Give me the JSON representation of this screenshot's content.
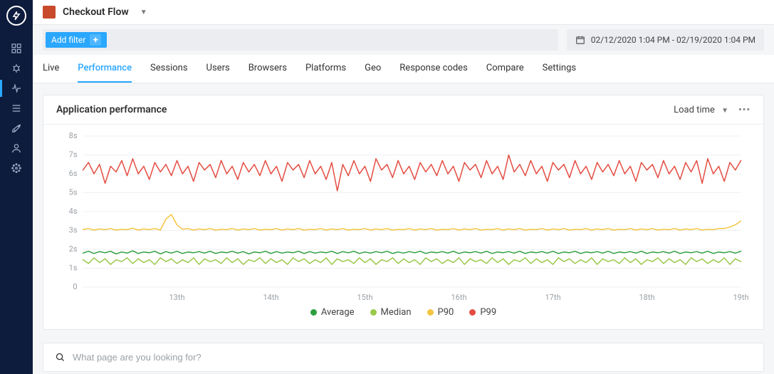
{
  "app": {
    "name": "Checkout Flow"
  },
  "filter": {
    "add_label": "Add filter"
  },
  "daterange": {
    "text": "02/12/2020 1:04 PM - 02/19/2020 1:04 PM"
  },
  "tabs": [
    {
      "label": "Live",
      "active": false
    },
    {
      "label": "Performance",
      "active": true
    },
    {
      "label": "Sessions",
      "active": false
    },
    {
      "label": "Users",
      "active": false
    },
    {
      "label": "Browsers",
      "active": false
    },
    {
      "label": "Platforms",
      "active": false
    },
    {
      "label": "Geo",
      "active": false
    },
    {
      "label": "Response codes",
      "active": false
    },
    {
      "label": "Compare",
      "active": false
    },
    {
      "label": "Settings",
      "active": false
    }
  ],
  "chart": {
    "title": "Application performance",
    "metric_label": "Load time",
    "type": "line",
    "ylim": [
      0,
      8
    ],
    "ytick_step": 1,
    "ylabel_suffix": "s",
    "background_color": "#ffffff",
    "grid_color": "#eef0f2",
    "axis_text_color": "#9aa0a6",
    "axis_font_size": 11,
    "x_labels": [
      "13th",
      "14th",
      "15th",
      "16th",
      "17th",
      "18th",
      "19th"
    ],
    "series": [
      {
        "name": "Average",
        "color": "#2e9e3f",
        "width": 1.5,
        "data": [
          1.8,
          1.9,
          1.78,
          1.88,
          1.82,
          1.9,
          1.76,
          1.86,
          1.8,
          1.92,
          1.78,
          1.86,
          1.82,
          1.9,
          1.76,
          1.88,
          1.8,
          1.9,
          1.78,
          1.86,
          1.82,
          1.88,
          1.8,
          1.9,
          1.78,
          1.86,
          1.82,
          1.9,
          1.8,
          1.88,
          1.76,
          1.86,
          1.82,
          1.9,
          1.78,
          1.88,
          1.8,
          1.86,
          1.82,
          1.9,
          1.78,
          1.88,
          1.8,
          1.86,
          1.82,
          1.9,
          1.78,
          1.88,
          1.82,
          1.9,
          1.78,
          1.86,
          1.8,
          1.88,
          1.82,
          1.9,
          1.78,
          1.86,
          1.8,
          1.88,
          1.82,
          1.9,
          1.78,
          1.86,
          1.82,
          1.88,
          1.8,
          1.9,
          1.78,
          1.86,
          1.82,
          1.88,
          1.8,
          1.9,
          1.78,
          1.86,
          1.82,
          1.88,
          1.8,
          1.9,
          1.78,
          1.86,
          1.82,
          1.88,
          1.8,
          1.9,
          1.78,
          1.86,
          1.82,
          1.9,
          1.78,
          1.86,
          1.82,
          1.88,
          1.8,
          1.9,
          1.78,
          1.86,
          1.82,
          1.88,
          1.8,
          1.9,
          1.78,
          1.86,
          1.82,
          1.88,
          1.8,
          1.9,
          1.78,
          1.86,
          1.82,
          1.88,
          1.8,
          1.9,
          1.78,
          1.86,
          1.82,
          1.88,
          1.8,
          1.9
        ]
      },
      {
        "name": "Median",
        "color": "#9ac84a",
        "width": 1.5,
        "data": [
          1.45,
          1.25,
          1.55,
          1.3,
          1.5,
          1.2,
          1.45,
          1.35,
          1.55,
          1.25,
          1.5,
          1.3,
          1.45,
          1.2,
          1.55,
          1.35,
          1.5,
          1.25,
          1.45,
          1.3,
          1.55,
          1.2,
          1.5,
          1.35,
          1.45,
          1.25,
          1.55,
          1.3,
          1.5,
          1.2,
          1.45,
          1.35,
          1.55,
          1.25,
          1.5,
          1.3,
          1.45,
          1.2,
          1.55,
          1.35,
          1.5,
          1.25,
          1.45,
          1.3,
          1.55,
          1.2,
          1.5,
          1.35,
          1.45,
          1.25,
          1.55,
          1.3,
          1.5,
          1.2,
          1.45,
          1.35,
          1.55,
          1.25,
          1.5,
          1.3,
          1.45,
          1.2,
          1.55,
          1.35,
          1.5,
          1.25,
          1.45,
          1.3,
          1.55,
          1.2,
          1.5,
          1.35,
          1.45,
          1.25,
          1.55,
          1.3,
          1.5,
          1.2,
          1.45,
          1.35,
          1.55,
          1.25,
          1.5,
          1.3,
          1.45,
          1.2,
          1.55,
          1.35,
          1.5,
          1.25,
          1.45,
          1.3,
          1.55,
          1.2,
          1.5,
          1.35,
          1.45,
          1.25,
          1.55,
          1.3,
          1.5,
          1.2,
          1.45,
          1.35,
          1.55,
          1.25,
          1.5,
          1.3,
          1.45,
          1.2,
          1.55,
          1.35,
          1.5,
          1.25,
          1.45,
          1.3,
          1.55,
          1.2,
          1.5,
          1.35
        ]
      },
      {
        "name": "P90",
        "color": "#f3c542",
        "width": 1.5,
        "data": [
          3.05,
          3.1,
          3.02,
          3.08,
          3.04,
          3.1,
          3.02,
          3.06,
          3.04,
          3.12,
          3.02,
          3.08,
          3.04,
          3.1,
          3.02,
          3.6,
          3.85,
          3.3,
          3.06,
          3.1,
          3.02,
          3.08,
          3.04,
          3.1,
          3.02,
          3.06,
          3.04,
          3.1,
          3.02,
          3.08,
          3.04,
          3.1,
          3.02,
          3.06,
          3.04,
          3.1,
          3.02,
          3.08,
          3.04,
          3.1,
          3.02,
          3.06,
          3.04,
          3.1,
          3.02,
          3.08,
          3.04,
          3.1,
          3.02,
          3.06,
          3.04,
          3.1,
          3.02,
          3.08,
          3.04,
          3.1,
          3.02,
          3.06,
          3.04,
          3.1,
          3.02,
          3.08,
          3.04,
          3.1,
          3.02,
          3.06,
          3.04,
          3.1,
          3.02,
          3.08,
          3.04,
          3.1,
          3.02,
          3.06,
          3.04,
          3.1,
          3.02,
          3.08,
          3.04,
          3.1,
          3.02,
          3.06,
          3.04,
          3.1,
          3.02,
          3.08,
          3.04,
          3.1,
          3.02,
          3.06,
          3.04,
          3.1,
          3.02,
          3.08,
          3.04,
          3.1,
          3.02,
          3.06,
          3.04,
          3.1,
          3.02,
          3.08,
          3.04,
          3.1,
          3.02,
          3.06,
          3.04,
          3.1,
          3.02,
          3.08,
          3.04,
          3.1,
          3.02,
          3.06,
          3.04,
          3.1,
          3.1,
          3.18,
          3.3,
          3.5
        ]
      },
      {
        "name": "P99",
        "color": "#e44d42",
        "width": 1.5,
        "data": [
          6.2,
          6.6,
          6.0,
          6.5,
          5.5,
          6.4,
          6.1,
          6.7,
          5.9,
          6.8,
          6.0,
          6.4,
          5.7,
          6.6,
          6.1,
          6.5,
          5.9,
          6.7,
          6.0,
          6.4,
          5.6,
          6.6,
          6.2,
          6.5,
          5.8,
          6.7,
          6.0,
          6.4,
          5.7,
          6.6,
          6.1,
          6.5,
          5.9,
          6.7,
          6.0,
          6.4,
          5.6,
          6.6,
          6.2,
          6.5,
          5.8,
          6.7,
          6.0,
          6.4,
          5.7,
          6.6,
          5.1,
          6.5,
          5.9,
          6.7,
          6.0,
          6.4,
          5.6,
          6.8,
          6.2,
          6.5,
          5.8,
          6.7,
          6.0,
          6.4,
          5.7,
          6.6,
          6.1,
          6.5,
          5.9,
          6.7,
          6.0,
          6.4,
          5.6,
          6.6,
          6.2,
          6.5,
          5.8,
          6.7,
          6.0,
          6.4,
          5.7,
          7.0,
          6.1,
          6.5,
          5.9,
          6.7,
          6.0,
          6.4,
          5.6,
          6.6,
          6.2,
          6.5,
          5.8,
          6.7,
          6.0,
          6.4,
          5.7,
          6.6,
          6.1,
          6.5,
          5.9,
          6.7,
          6.0,
          6.4,
          5.6,
          6.6,
          6.2,
          6.5,
          5.8,
          6.7,
          6.0,
          6.4,
          5.7,
          6.6,
          6.1,
          6.7,
          5.5,
          6.8,
          6.0,
          6.4,
          5.6,
          6.6,
          6.2,
          6.7
        ]
      }
    ],
    "legend": [
      {
        "label": "Average",
        "color": "#2e9e3f"
      },
      {
        "label": "Median",
        "color": "#9ac84a"
      },
      {
        "label": "P90",
        "color": "#f3c542"
      },
      {
        "label": "P99",
        "color": "#e44d42"
      }
    ]
  },
  "search": {
    "placeholder": "What page are you looking for?"
  },
  "rail": {
    "items": [
      {
        "name": "dashboard-icon"
      },
      {
        "name": "bug-icon"
      },
      {
        "name": "pulse-icon",
        "active": true
      },
      {
        "name": "list-icon"
      },
      {
        "name": "rocket-icon"
      },
      {
        "name": "user-icon"
      },
      {
        "name": "gear-dotted-icon"
      }
    ]
  }
}
